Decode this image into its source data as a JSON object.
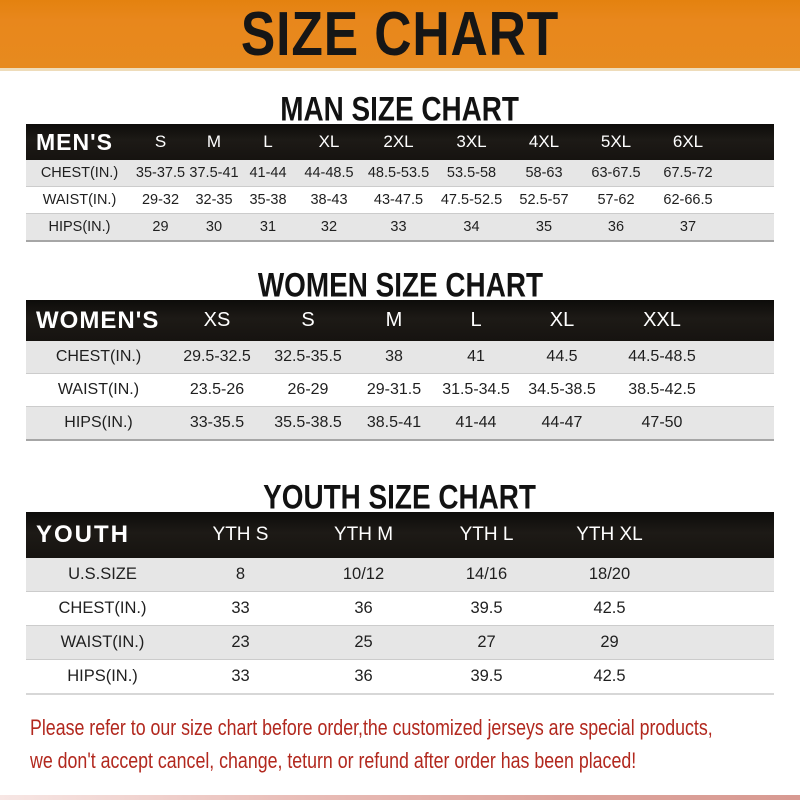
{
  "banner": {
    "title": "SIZE CHART"
  },
  "sections": [
    {
      "heading": "MAN SIZE CHART",
      "header": {
        "label": "MEN'S",
        "sizes": [
          "S",
          "M",
          "L",
          "XL",
          "2XL",
          "3XL",
          "4XL",
          "5XL",
          "6XL"
        ]
      },
      "rows": [
        {
          "label": "CHEST(IN.)",
          "values": [
            "35-37.5",
            "37.5-41",
            "41-44",
            "44-48.5",
            "48.5-53.5",
            "53.5-58",
            "58-63",
            "63-67.5",
            "67.5-72"
          ]
        },
        {
          "label": "WAIST(IN.)",
          "values": [
            "29-32",
            "32-35",
            "35-38",
            "38-43",
            "43-47.5",
            "47.5-52.5",
            "52.5-57",
            "57-62",
            "62-66.5"
          ]
        },
        {
          "label": "HIPS(IN.)",
          "values": [
            "29",
            "30",
            "31",
            "32",
            "33",
            "34",
            "35",
            "36",
            "37"
          ]
        }
      ]
    },
    {
      "heading": "WOMEN SIZE CHART",
      "header": {
        "label": "WOMEN'S",
        "sizes": [
          "XS",
          "S",
          "M",
          "L",
          "XL",
          "XXL"
        ]
      },
      "rows": [
        {
          "label": "CHEST(IN.)",
          "values": [
            "29.5-32.5",
            "32.5-35.5",
            "38",
            "41",
            "44.5",
            "44.5-48.5"
          ]
        },
        {
          "label": "WAIST(IN.)",
          "values": [
            "23.5-26",
            "26-29",
            "29-31.5",
            "31.5-34.5",
            "34.5-38.5",
            "38.5-42.5"
          ]
        },
        {
          "label": "HIPS(IN.)",
          "values": [
            "33-35.5",
            "35.5-38.5",
            "38.5-41",
            "41-44",
            "44-47",
            "47-50"
          ]
        }
      ]
    },
    {
      "heading": "YOUTH SIZE CHART",
      "header": {
        "label": "YOUTH",
        "sizes": [
          "YTH S",
          "YTH M",
          "YTH L",
          "YTH XL"
        ]
      },
      "rows": [
        {
          "label": "U.S.SIZE",
          "values": [
            "8",
            "10/12",
            "14/16",
            "18/20"
          ]
        },
        {
          "label": "CHEST(IN.)",
          "values": [
            "33",
            "36",
            "39.5",
            "42.5"
          ]
        },
        {
          "label": "WAIST(IN.)",
          "values": [
            "23",
            "25",
            "27",
            "29"
          ]
        },
        {
          "label": "HIPS(IN.)",
          "values": [
            "33",
            "36",
            "39.5",
            "42.5"
          ]
        }
      ]
    }
  ],
  "footer": {
    "line1": "Please refer to our size chart before order,the customized jerseys are special products,",
    "line2": "we don't accept cancel, change, teturn or refund after order has been placed!"
  },
  "colors": {
    "banner_orange": "#E78A1E",
    "banner_text": "#161616",
    "bar_black": "#17130F",
    "bar_text": "#FFFFFF",
    "row_gray": "#E6E6E6",
    "footer_red": "#B2281E"
  }
}
